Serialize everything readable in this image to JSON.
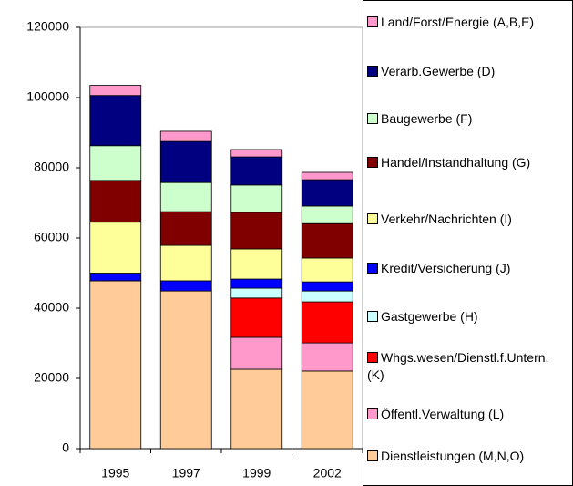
{
  "chart_data": {
    "type": "stacked_bar",
    "categories": [
      "1995",
      "1997",
      "1999",
      "2002"
    ],
    "ylim": [
      0,
      120000
    ],
    "yticks": [
      0,
      20000,
      40000,
      60000,
      80000,
      100000,
      120000
    ],
    "series": [
      {
        "name": "Land/Forst/Energie (A,B,E)",
        "color": "#ff99cc",
        "values": [
          2900,
          2900,
          2100,
          2100
        ]
      },
      {
        "name": "Verarb.Gewerbe (D)",
        "color": "#000080",
        "values": [
          14300,
          11700,
          8000,
          7500
        ]
      },
      {
        "name": "Baugewerbe (F)",
        "color": "#ccffcc",
        "values": [
          9900,
          8300,
          7800,
          5000
        ]
      },
      {
        "name": "Handel/Instandhaltung (G)",
        "color": "#800000",
        "values": [
          11900,
          9600,
          10400,
          9800
        ]
      },
      {
        "name": "Verkehr/Nachrichten (I)",
        "color": "#ffff99",
        "values": [
          14500,
          10100,
          8600,
          6800
        ]
      },
      {
        "name": "Kredit/Versicherung (J)",
        "color": "#0000ff",
        "values": [
          2200,
          2900,
          2600,
          2600
        ]
      },
      {
        "name": "Gastgewerbe (H)",
        "color": "#ccffff",
        "values": [
          0,
          0,
          2800,
          3100
        ]
      },
      {
        "name": "Whgs.wesen/Dienstl.f.Untern. (K)",
        "color": "#ff0000",
        "values": [
          0,
          0,
          11200,
          11700
        ]
      },
      {
        "name": "Öffentl.Verwaltung (L)",
        "color": "#ff99cc",
        "values": [
          0,
          0,
          9100,
          8000
        ]
      },
      {
        "name": "Dienstleistungen (M,N,O)",
        "color": "#ffcc99",
        "values": [
          47800,
          44900,
          22600,
          22100
        ]
      }
    ]
  }
}
